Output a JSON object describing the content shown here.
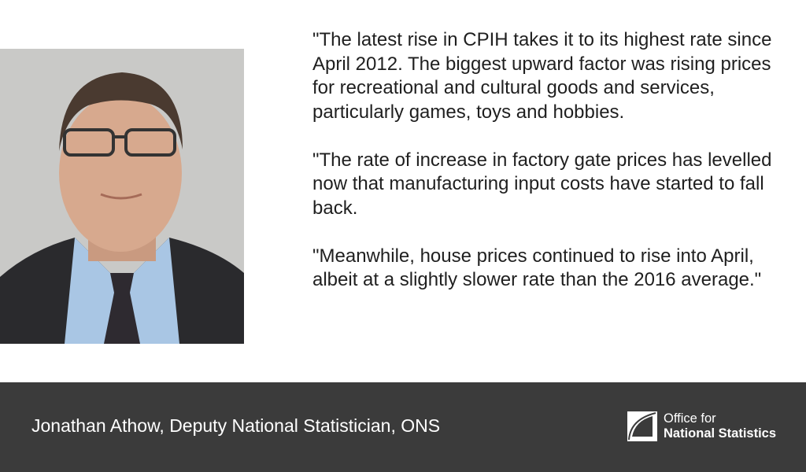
{
  "quote": {
    "paragraphs": [
      "\"The latest rise in CPIH takes it to its highest rate since April 2012. The biggest upward factor was rising prices for recreational and cultural goods and services, particularly games, toys and hobbies.",
      "\"The rate of increase in factory gate prices has levelled now that manufacturing input costs have started to fall back.",
      "\"Meanwhile, house prices continued to rise into April, albeit at a slightly slower rate than the 2016 average.\""
    ]
  },
  "footer": {
    "attribution": "Jonathan Athow, Deputy National Statistician, ONS",
    "logo": {
      "line1": "Office for",
      "line2": "National Statistics"
    }
  }
}
